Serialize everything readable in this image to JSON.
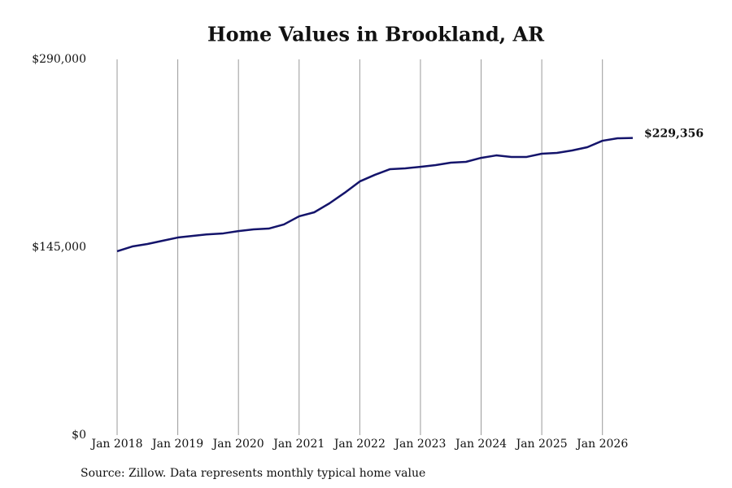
{
  "chart_data": {
    "type": "line",
    "title": "Home Values in Brookland, AR",
    "source": "Source: Zillow. Data represents monthly typical home value",
    "x": [
      "2018-01",
      "2018-04",
      "2018-07",
      "2018-10",
      "2019-01",
      "2019-04",
      "2019-07",
      "2019-10",
      "2020-01",
      "2020-04",
      "2020-07",
      "2020-10",
      "2021-01",
      "2021-04",
      "2021-07",
      "2021-10",
      "2022-01",
      "2022-04",
      "2022-07",
      "2022-10",
      "2023-01",
      "2023-04",
      "2023-07",
      "2023-10",
      "2024-01",
      "2024-04",
      "2024-07",
      "2024-10",
      "2025-01",
      "2025-04",
      "2025-07",
      "2025-10",
      "2026-01",
      "2026-04",
      "2026-07"
    ],
    "series": [
      {
        "name": "Home value",
        "color": "#14146b",
        "values": [
          141900,
          145600,
          147500,
          150000,
          152500,
          153800,
          155000,
          155700,
          157500,
          158800,
          159400,
          162600,
          168900,
          172000,
          178900,
          187000,
          195800,
          200900,
          205300,
          205900,
          207100,
          208400,
          210300,
          210900,
          214000,
          215900,
          214700,
          214700,
          217200,
          217800,
          219700,
          222200,
          227200,
          229100,
          229356
        ],
        "value_labels": [
          null,
          null,
          null,
          null,
          null,
          null,
          null,
          null,
          null,
          null,
          null,
          null,
          null,
          null,
          null,
          null,
          null,
          null,
          null,
          null,
          null,
          null,
          null,
          null,
          null,
          null,
          null,
          null,
          null,
          null,
          null,
          null,
          null,
          null,
          "$229,356"
        ]
      }
    ],
    "xlim": [
      "2018-01",
      "2026-07"
    ],
    "xticks": [
      {
        "value": "2018-01",
        "label": "Jan 2018"
      },
      {
        "value": "2019-01",
        "label": "Jan 2019"
      },
      {
        "value": "2020-01",
        "label": "Jan 2020"
      },
      {
        "value": "2021-01",
        "label": "Jan 2021"
      },
      {
        "value": "2022-01",
        "label": "Jan 2022"
      },
      {
        "value": "2023-01",
        "label": "Jan 2023"
      },
      {
        "value": "2024-01",
        "label": "Jan 2024"
      },
      {
        "value": "2025-01",
        "label": "Jan 2025"
      },
      {
        "value": "2026-01",
        "label": "Jan 2026"
      }
    ],
    "ylim": [
      0,
      290000
    ],
    "yticks": [
      {
        "value": 0,
        "label": "$0"
      },
      {
        "value": 145000,
        "label": "$145,000"
      },
      {
        "value": 290000,
        "label": "$290,000"
      }
    ],
    "grid": "x"
  }
}
